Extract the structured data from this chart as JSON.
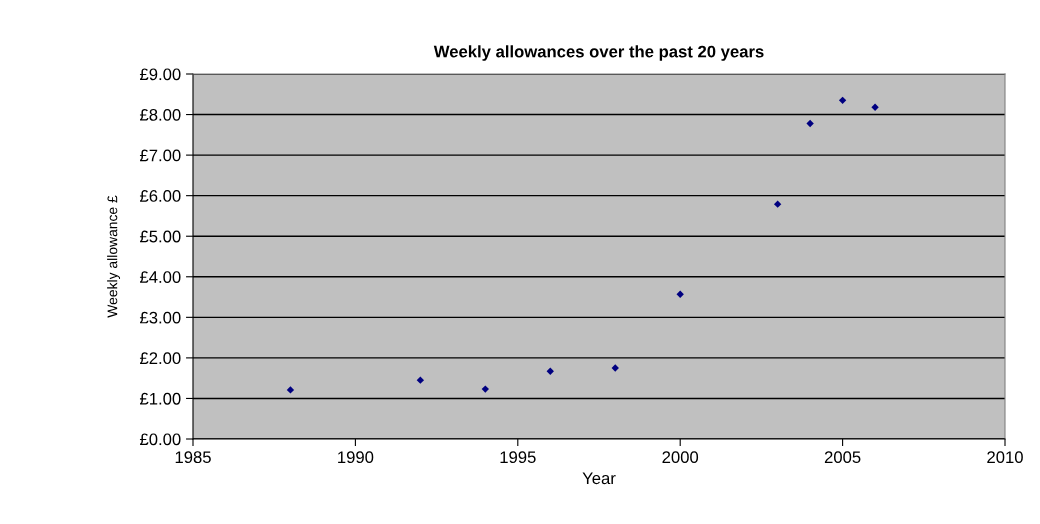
{
  "chart_data": {
    "type": "scatter",
    "title": "Weekly allowances over the past 20 years",
    "xlabel": "Year",
    "ylabel": "Weekly allowance £",
    "x": [
      1988,
      1992,
      1994,
      1996,
      1998,
      2000,
      2003,
      2004,
      2005,
      2006
    ],
    "series": [
      {
        "color": "#000080",
        "values": [
          1.21,
          1.45,
          1.23,
          1.67,
          1.75,
          3.57,
          5.79,
          7.78,
          8.35,
          8.18
        ]
      }
    ],
    "xlim": [
      1985,
      2010
    ],
    "xticks": [
      1985,
      1990,
      1995,
      2000,
      2005,
      2010
    ],
    "ylim": [
      0,
      9
    ],
    "yticks": [
      {
        "value": 0,
        "label": "£0.00"
      },
      {
        "value": 1,
        "label": "£1.00"
      },
      {
        "value": 2,
        "label": "£2.00"
      },
      {
        "value": 3,
        "label": "£3.00"
      },
      {
        "value": 4,
        "label": "£4.00"
      },
      {
        "value": 5,
        "label": "£5.00"
      },
      {
        "value": 6,
        "label": "£6.00"
      },
      {
        "value": 7,
        "label": "£7.00"
      },
      {
        "value": 8,
        "label": "£8.00"
      },
      {
        "value": 9,
        "label": "£9.00"
      }
    ],
    "grid": "y",
    "marker": "diamond",
    "legend": false
  }
}
